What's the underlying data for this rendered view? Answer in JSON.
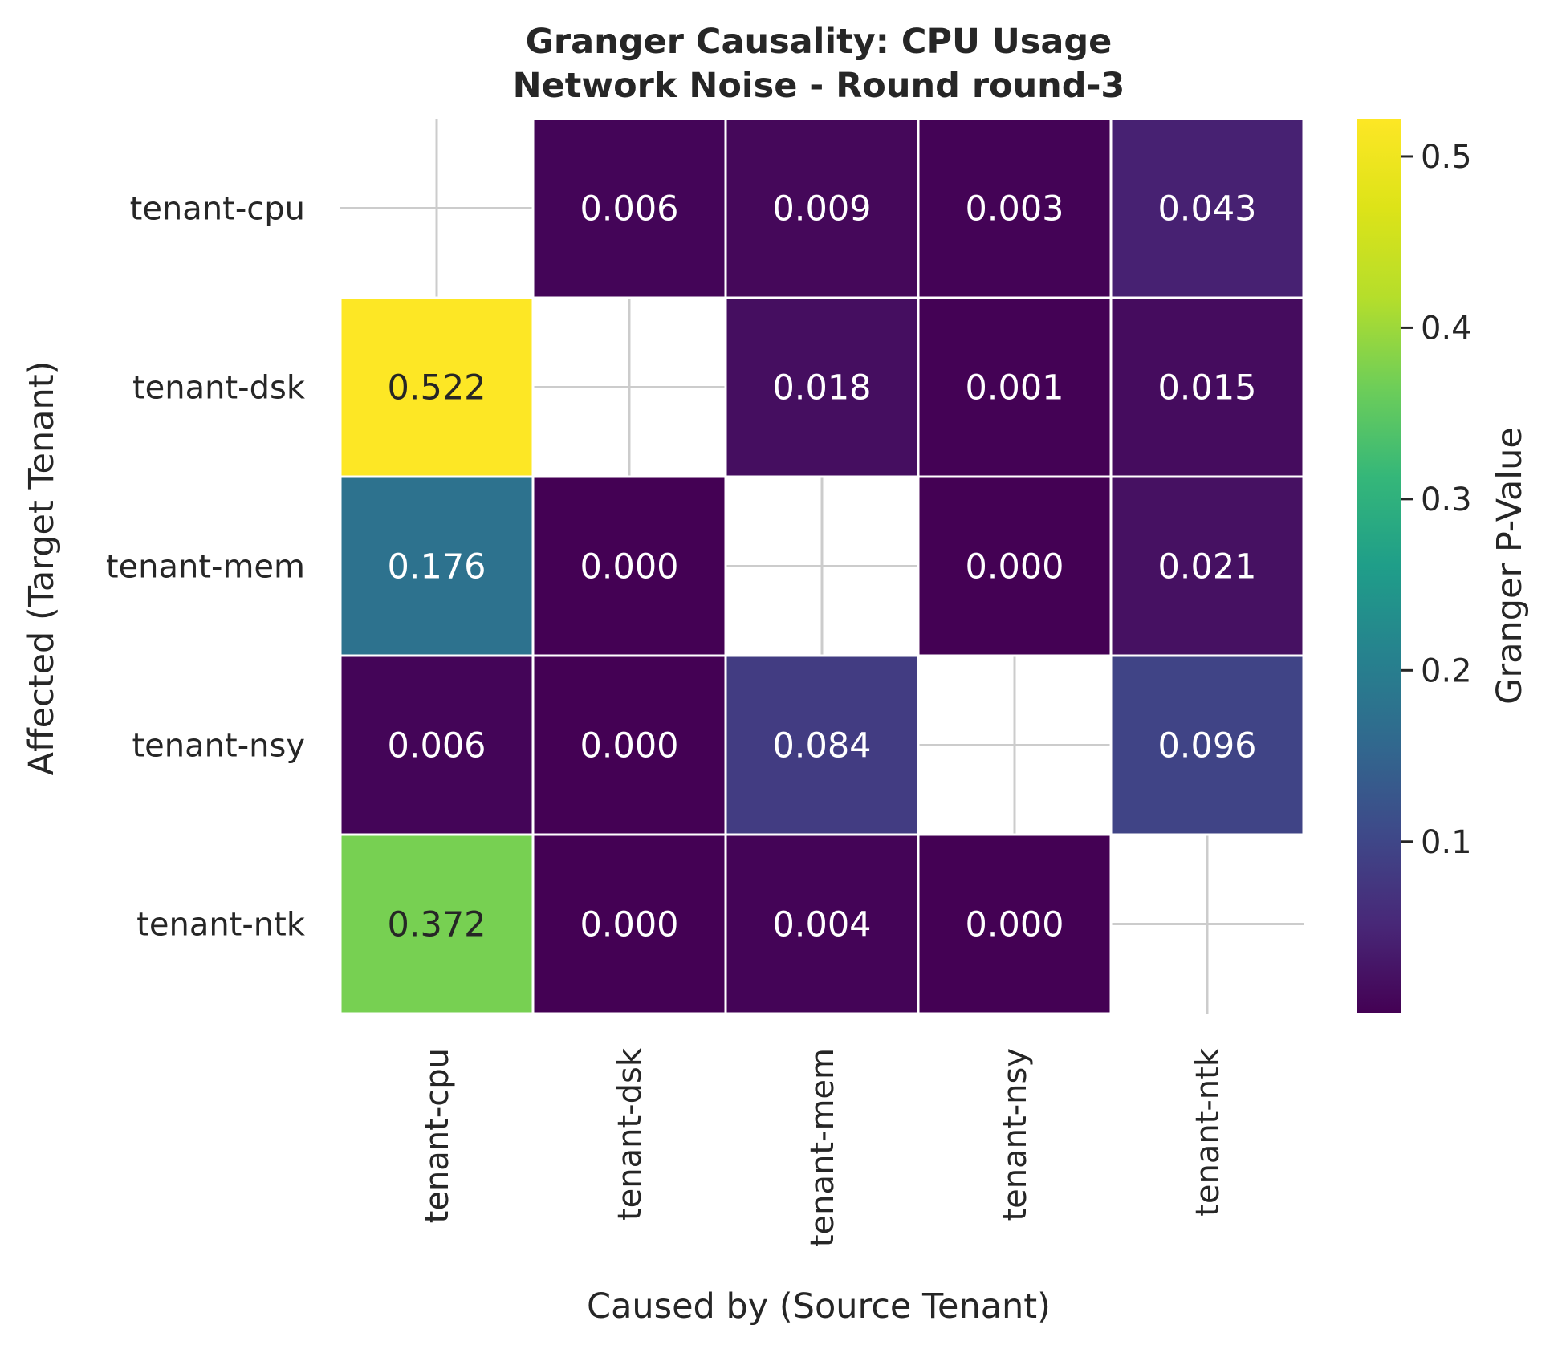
{
  "chart_data": {
    "type": "heatmap",
    "title_line1": "Granger Causality: CPU Usage",
    "title_line2": "Network Noise - Round round-3",
    "xlabel": "Caused by (Source Tenant)",
    "ylabel": "Affected (Target Tenant)",
    "x_categories": [
      "tenant-cpu",
      "tenant-dsk",
      "tenant-mem",
      "tenant-nsy",
      "tenant-ntk"
    ],
    "y_categories": [
      "tenant-cpu",
      "tenant-dsk",
      "tenant-mem",
      "tenant-nsy",
      "tenant-ntk"
    ],
    "values": [
      [
        null,
        0.006,
        0.009,
        0.003,
        0.043
      ],
      [
        0.522,
        null,
        0.018,
        0.001,
        0.015
      ],
      [
        0.176,
        0.0,
        null,
        0.0,
        0.021
      ],
      [
        0.006,
        0.0,
        0.084,
        null,
        0.096
      ],
      [
        0.372,
        0.0,
        0.004,
        0.0,
        null
      ]
    ],
    "value_labels": [
      [
        "",
        "0.006",
        "0.009",
        "0.003",
        "0.043"
      ],
      [
        "0.522",
        "",
        "0.018",
        "0.001",
        "0.015"
      ],
      [
        "0.176",
        "0.000",
        "",
        "0.000",
        "0.021"
      ],
      [
        "0.006",
        "0.000",
        "0.084",
        "",
        "0.096"
      ],
      [
        "0.372",
        "0.000",
        "0.004",
        "0.000",
        ""
      ]
    ],
    "colormap": "viridis",
    "colorbar": {
      "label": "Granger P-Value",
      "range": [
        0.0001,
        0.522
      ],
      "ticks": [
        0.1,
        0.2,
        0.3,
        0.4,
        0.5
      ],
      "tick_labels": [
        "0.1",
        "0.2",
        "0.3",
        "0.4",
        "0.5"
      ]
    },
    "grid": true,
    "diagonal_masked": true
  }
}
